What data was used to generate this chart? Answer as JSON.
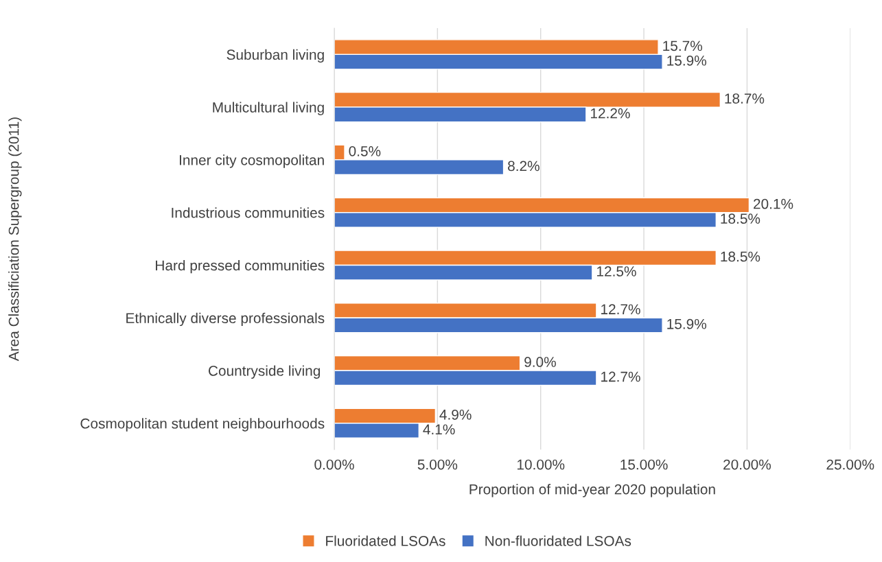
{
  "chart_data": {
    "type": "bar",
    "orientation": "horizontal",
    "xlabel": "Proportion of mid-year 2020 population",
    "ylabel": "Area Classificiation Supergroup (2011)",
    "categories": [
      "Suburban living",
      "Multicultural living",
      "Inner city cosmopolitan",
      "Industrious communities",
      "Hard pressed communities",
      "Ethnically diverse professionals",
      "Countryside living ",
      "Cosmopolitan student neighbourhoods"
    ],
    "series": [
      {
        "name": "Fluoridated LSOAs",
        "color": "#ed7d31",
        "values": [
          15.7,
          18.7,
          0.5,
          20.1,
          18.5,
          12.7,
          9.0,
          4.9
        ],
        "value_labels": [
          "15.7%",
          "18.7%",
          "0.5%",
          "20.1%",
          "18.5%",
          "12.7%",
          "9.0%",
          "4.9%"
        ]
      },
      {
        "name": "Non-fluoridated LSOAs",
        "color": "#4472c4",
        "values": [
          15.9,
          12.2,
          8.2,
          18.5,
          12.5,
          15.9,
          12.7,
          4.1
        ],
        "value_labels": [
          "15.9%",
          "12.2%",
          "8.2%",
          "18.5%",
          "12.5%",
          "15.9%",
          "12.7%",
          "4.1%"
        ]
      }
    ],
    "xlim": [
      0,
      25
    ],
    "xticks": [
      {
        "value": 0,
        "label": "0.00%"
      },
      {
        "value": 5,
        "label": "5.00%"
      },
      {
        "value": 10,
        "label": "10.00%"
      },
      {
        "value": 15,
        "label": "15.00%"
      },
      {
        "value": 20,
        "label": "20.00%"
      },
      {
        "value": 25,
        "label": "25.00%"
      }
    ],
    "grid": "x",
    "legend": "bottom"
  }
}
